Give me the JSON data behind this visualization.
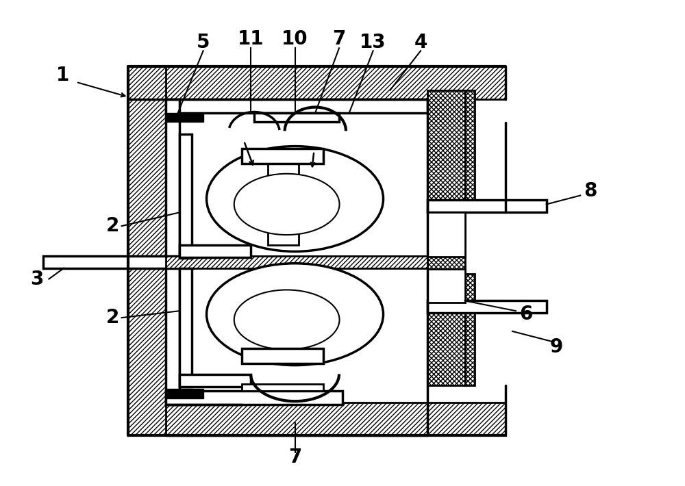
{
  "bg_color": "#ffffff",
  "lc": "#000000",
  "fig_w": 10.0,
  "fig_h": 7.1,
  "dpi": 100
}
